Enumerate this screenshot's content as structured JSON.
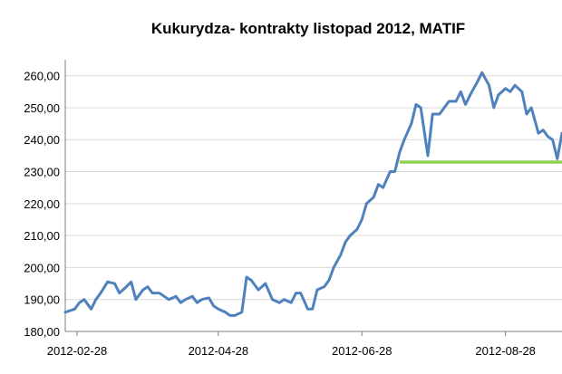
{
  "chart_data": {
    "type": "line",
    "title": "Kukurydza- kontrakty listopad 2012, MATIF",
    "xlabel": "",
    "ylabel": "",
    "x_range": [
      "2012-02-23",
      "2012-09-21"
    ],
    "ylim": [
      180,
      265
    ],
    "yticks": [
      180,
      190,
      200,
      210,
      220,
      230,
      240,
      250,
      260
    ],
    "ytick_labels": [
      "180,00",
      "190,00",
      "200,00",
      "210,00",
      "220,00",
      "230,00",
      "240,00",
      "250,00",
      "260,00"
    ],
    "xticks": [
      "2012-02-28",
      "2012-04-28",
      "2012-06-28",
      "2012-08-28"
    ],
    "xtick_labels": [
      "2012-02-28",
      "2012-04-28",
      "2012-06-28",
      "2012-08-28"
    ],
    "grid": true,
    "legend": "none",
    "colors": {
      "series": "#4f81bd",
      "support": "#92d050",
      "grid": "#d9d9d9",
      "axis": "#7f7f7f"
    },
    "series": [
      {
        "x": [
          "2012-02-23",
          "2012-02-27",
          "2012-02-29",
          "2012-03-02",
          "2012-03-05",
          "2012-03-07",
          "2012-03-09",
          "2012-03-12",
          "2012-03-15",
          "2012-03-17",
          "2012-03-20",
          "2012-03-22",
          "2012-03-24",
          "2012-03-27",
          "2012-03-29",
          "2012-03-31",
          "2012-04-03",
          "2012-04-05",
          "2012-04-07",
          "2012-04-10",
          "2012-04-12",
          "2012-04-14",
          "2012-04-17",
          "2012-04-19",
          "2012-04-21",
          "2012-04-24",
          "2012-04-26",
          "2012-04-28",
          "2012-05-01",
          "2012-05-03",
          "2012-05-05",
          "2012-05-08",
          "2012-05-10",
          "2012-05-12",
          "2012-05-15",
          "2012-05-18",
          "2012-05-21",
          "2012-05-24",
          "2012-05-26",
          "2012-05-29",
          "2012-05-31",
          "2012-06-02",
          "2012-06-05",
          "2012-06-07",
          "2012-06-09",
          "2012-06-12",
          "2012-06-14",
          "2012-06-16",
          "2012-06-19",
          "2012-06-21",
          "2012-06-23",
          "2012-06-26",
          "2012-06-28",
          "2012-06-30",
          "2012-07-03",
          "2012-07-05",
          "2012-07-07",
          "2012-07-10",
          "2012-07-12",
          "2012-07-14",
          "2012-07-16",
          "2012-07-19",
          "2012-07-21",
          "2012-07-23",
          "2012-07-26",
          "2012-07-28",
          "2012-07-31",
          "2012-08-02",
          "2012-08-04",
          "2012-08-07",
          "2012-08-09",
          "2012-08-11",
          "2012-08-13",
          "2012-08-16",
          "2012-08-18",
          "2012-08-21",
          "2012-08-23",
          "2012-08-25",
          "2012-08-28",
          "2012-08-30",
          "2012-09-01",
          "2012-09-04",
          "2012-09-06",
          "2012-09-08",
          "2012-09-11",
          "2012-09-13",
          "2012-09-15",
          "2012-09-17",
          "2012-09-19",
          "2012-09-21"
        ],
        "values": [
          186,
          187,
          189,
          190,
          187,
          190,
          192,
          195.5,
          195,
          192,
          194,
          195.5,
          190,
          193,
          194,
          192,
          192,
          191,
          190,
          191,
          189,
          190,
          191,
          189,
          190,
          190.5,
          188,
          187,
          186,
          185,
          185,
          186,
          197,
          196,
          193,
          195,
          190,
          189,
          190,
          189,
          192,
          192,
          187,
          187,
          193,
          194,
          196,
          200,
          204,
          208,
          210,
          212,
          215,
          220,
          222,
          226,
          225,
          230,
          230,
          236,
          240,
          245,
          251,
          250,
          235,
          248,
          248,
          250,
          252,
          252,
          255,
          251,
          254,
          258,
          261,
          257,
          250,
          254,
          256,
          255,
          257,
          255,
          248,
          250,
          242,
          243,
          241,
          240,
          234,
          242
        ]
      }
    ],
    "support_line": {
      "x": [
        "2012-07-14",
        "2012-09-21"
      ],
      "value": 233
    }
  }
}
